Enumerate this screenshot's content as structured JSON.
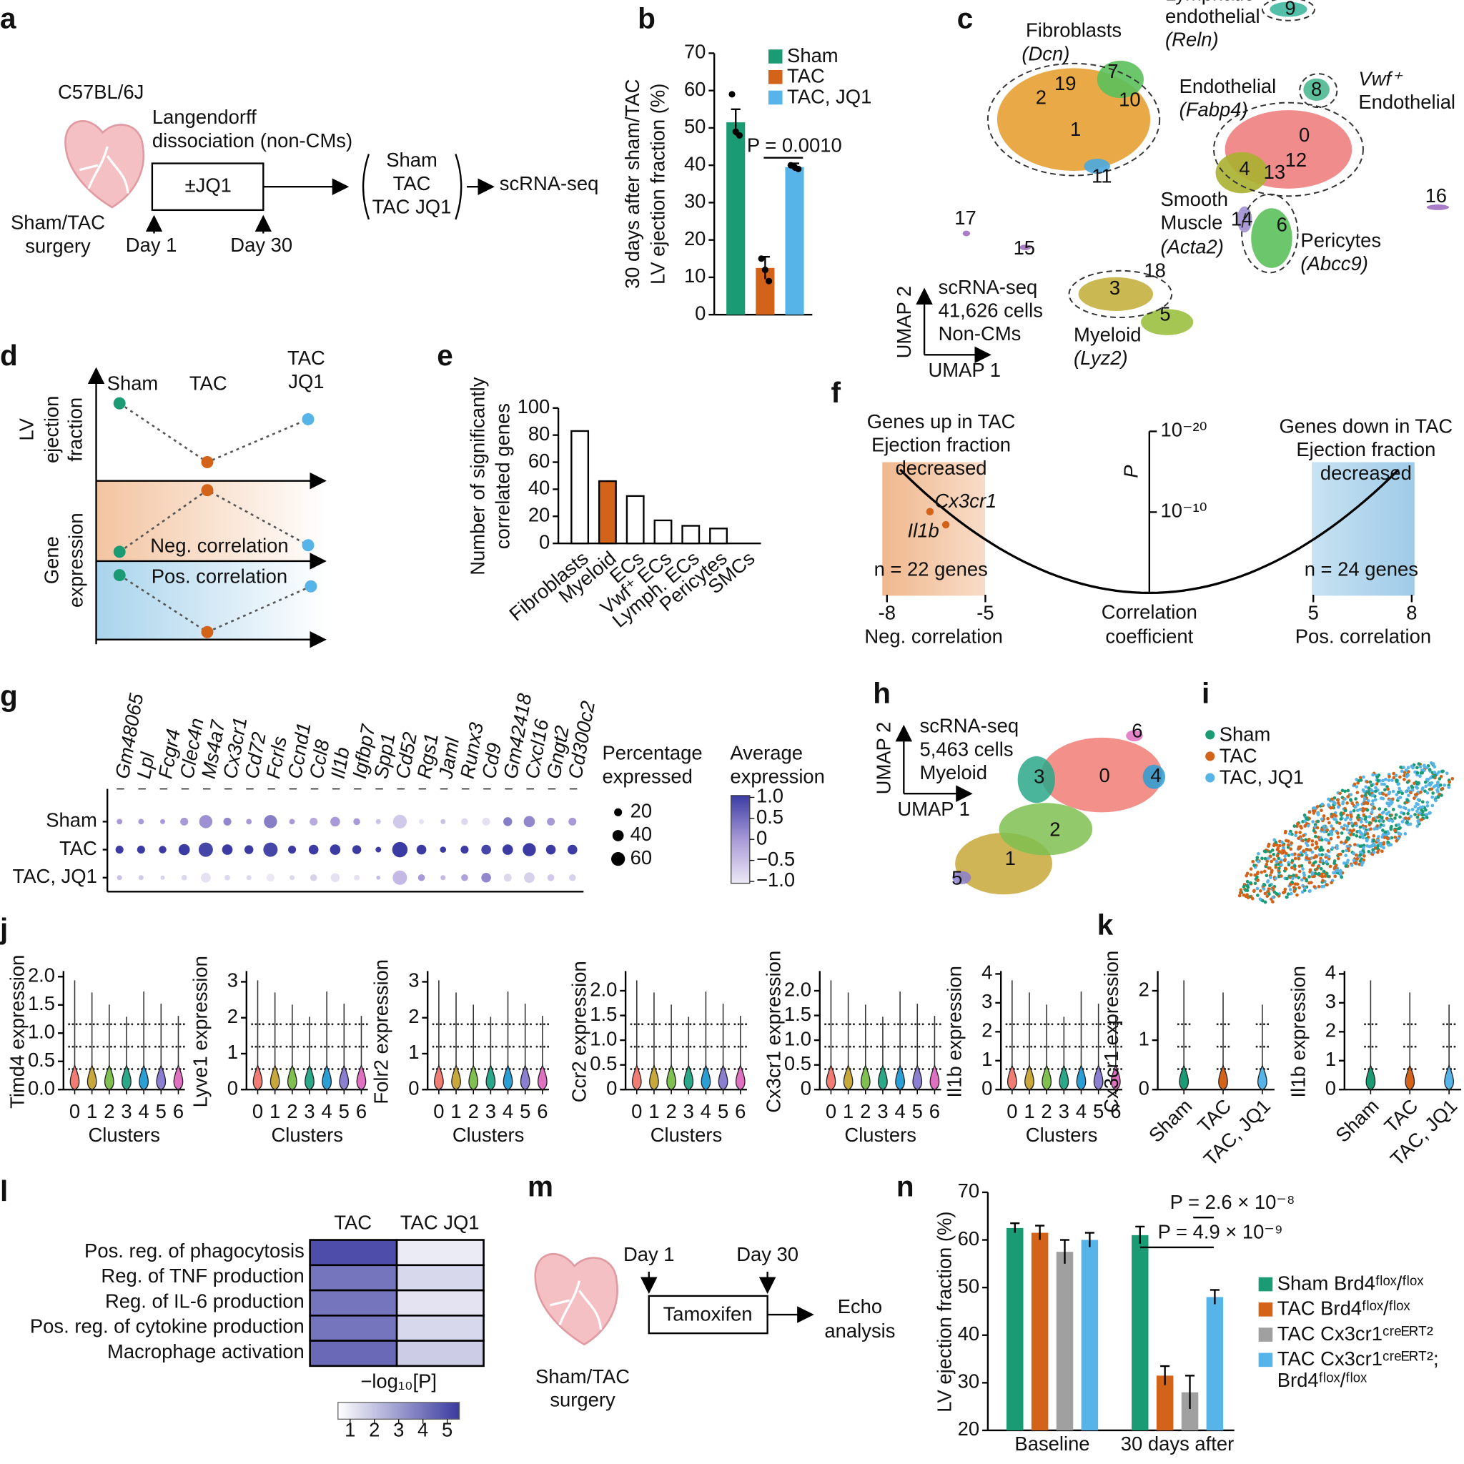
{
  "diagrams": [
    {
      "panel": "a",
      "strain": "C57BL/6J",
      "step": [
        "Langendorff",
        "dissociation (non-CMs)"
      ],
      "treatment": "±JQ1",
      "groups": [
        "Sham",
        "TAC",
        "TAC JQ1"
      ],
      "output": "scRNA-seq",
      "surgery": [
        "Sham/TAC",
        "surgery"
      ],
      "days": [
        "Day 1",
        "Day 30"
      ]
    },
    {
      "panel": "c",
      "clusters": [
        "0",
        "1",
        "2",
        "3",
        "4",
        "5",
        "6",
        "7",
        "8",
        "9",
        "10",
        "11",
        "12",
        "13",
        "14",
        "15",
        "16",
        "17",
        "18",
        "19"
      ],
      "cell_types": [
        [
          "Fibroblasts",
          "(Dcn)"
        ],
        [
          "Lymphatic",
          "endothelial",
          "(Reln)"
        ],
        [
          "Endothelial",
          "(Fabp4)"
        ],
        [
          "Vwf⁺",
          "Endothelial"
        ],
        [
          "Smooth",
          "Muscle",
          "(Acta2)"
        ],
        [
          "Pericytes",
          "(Abcc9)"
        ],
        [
          "Myeloid",
          "(Lyz2)"
        ]
      ],
      "info": [
        "scRNA-seq",
        "41,626 cells",
        "Non-CMs"
      ],
      "axes": [
        "UMAP 2",
        "UMAP 1"
      ]
    },
    {
      "panel": "d",
      "ylabel_top": [
        "LV",
        "ejection",
        "fraction"
      ],
      "ylabel_bottom": [
        "Gene",
        "expression"
      ],
      "conditions": [
        "Sham",
        "TAC"
      ],
      "condition3": [
        "TAC",
        "JQ1"
      ],
      "regions": [
        "Neg. correlation",
        "Pos. correlation"
      ]
    },
    {
      "panel": "h",
      "info": [
        "scRNA-seq",
        "5,463 cells",
        "Myeloid"
      ],
      "axes": [
        "UMAP 2",
        "UMAP 1"
      ],
      "clusters": [
        "0",
        "1",
        "2",
        "3",
        "4",
        "5",
        "6"
      ]
    },
    {
      "panel": "i",
      "legend": [
        {
          "name": "Sham",
          "color": "#1a9b73"
        },
        {
          "name": "TAC",
          "color": "#d4631a"
        },
        {
          "name": "TAC, JQ1",
          "color": "#56b4e9"
        }
      ]
    },
    {
      "panel": "m",
      "days": [
        "Day 1",
        "Day 30"
      ],
      "treatment": "Tamoxifen",
      "output": [
        "Echo",
        "analysis"
      ],
      "surgery": [
        "Sham/TAC",
        "surgery"
      ]
    }
  ],
  "chart_data": [
    {
      "panel": "b",
      "type": "bar",
      "ylabel": [
        "30 days after sham/TAC",
        "LV ejection fraction (%)"
      ],
      "ylim": [
        0,
        70
      ],
      "yticks": [
        0,
        10,
        20,
        30,
        40,
        50,
        60,
        70
      ],
      "series": [
        {
          "name": "Sham",
          "color": "#1a9b73",
          "values": [
            51.5
          ],
          "errors": [
            3.5
          ],
          "points": [
            59,
            49,
            48
          ]
        },
        {
          "name": "TAC",
          "color": "#d4631a",
          "values": [
            12.5
          ],
          "errors": [
            3
          ],
          "points": [
            15,
            12,
            9
          ]
        },
        {
          "name": "TAC, JQ1",
          "color": "#56b4e9",
          "values": [
            39.5
          ],
          "errors": [
            1
          ],
          "points": [
            40,
            39.5,
            39
          ]
        }
      ],
      "annotations": [
        "P = 0.0010"
      ]
    },
    {
      "panel": "e",
      "type": "bar",
      "ylabel": [
        "Number of significantly",
        "correlated genes"
      ],
      "categories": [
        "Fibroblasts",
        "Myeloid",
        "ECs",
        "Vwf⁺ ECs",
        "Lymph. ECs",
        "Pericytes",
        "SMCs"
      ],
      "values": [
        83,
        46,
        35,
        17,
        13,
        11,
        0
      ],
      "colors": [
        "#ffffff",
        "#d4631a",
        "#ffffff",
        "#ffffff",
        "#ffffff",
        "#ffffff",
        "#ffffff"
      ],
      "ylim": [
        0,
        100
      ],
      "yticks": [
        0,
        20,
        40,
        60,
        80,
        100
      ]
    },
    {
      "panel": "f",
      "type": "curve",
      "xlim": [
        -8,
        8
      ],
      "xticks": [
        -8,
        -5,
        5,
        8
      ],
      "ylim": [
        0,
        20
      ],
      "yticks": [
        {
          "value": 20,
          "label": "10⁻²⁰"
        },
        {
          "value": 10,
          "label": "10⁻¹⁰"
        }
      ],
      "ylabel": "P",
      "xlabel": [
        "Correlation",
        "coefficient"
      ],
      "xnotes": [
        "Neg. correlation",
        "Pos. correlation"
      ],
      "neg_label": [
        "Genes up in TAC",
        "Ejection fraction",
        "decreased"
      ],
      "pos_label": [
        "Genes down in TAC",
        "Ejection fraction",
        "decreased"
      ],
      "n_neg": "n = 22 genes",
      "n_pos": "n = 24 genes",
      "genes": [
        "Cx3cr1",
        "Il1b"
      ]
    },
    {
      "panel": "g",
      "type": "dot",
      "genes": [
        "Gm48065",
        "Lpl",
        "Fcgr4",
        "Clec4n",
        "Ms4a7",
        "Cx3cr1",
        "Cd72",
        "Fcrls",
        "Ccnd1",
        "Ccl8",
        "Il1b",
        "Igfbp7",
        "Spp1",
        "Cd52",
        "Rgs1",
        "Jaml",
        "Runx3",
        "Cd9",
        "Gm42418",
        "Cxcl16",
        "Gngt2",
        "Cd300c2"
      ],
      "series": [
        {
          "name": "Sham",
          "values": [
            10,
            10,
            8,
            20,
            55,
            20,
            10,
            55,
            10,
            20,
            30,
            15,
            8,
            60,
            8,
            8,
            15,
            20,
            25,
            40,
            20,
            20
          ],
          "avg": [
            0,
            0,
            0,
            0,
            0.1,
            0.2,
            0,
            0.3,
            0,
            -0.2,
            0,
            0,
            -0.5,
            -0.6,
            -0.9,
            -0.5,
            -0.8,
            -0.9,
            0.3,
            0.2,
            0,
            0
          ]
        },
        {
          "name": "TAC",
          "values": [
            20,
            20,
            18,
            40,
            65,
            35,
            25,
            65,
            20,
            30,
            35,
            25,
            10,
            75,
            30,
            12,
            20,
            30,
            35,
            55,
            30,
            30
          ],
          "avg": [
            1,
            1,
            1,
            1,
            0.9,
            1,
            1,
            0.9,
            1,
            1,
            1,
            1,
            1,
            1,
            1,
            1,
            1,
            0.9,
            1,
            1,
            1,
            1
          ]
        },
        {
          "name": "TAC, JQ1",
          "values": [
            8,
            8,
            6,
            10,
            30,
            10,
            8,
            20,
            8,
            15,
            25,
            10,
            5,
            65,
            15,
            8,
            15,
            30,
            20,
            35,
            15,
            15
          ],
          "avg": [
            -0.5,
            -0.6,
            -0.7,
            -0.8,
            -0.9,
            -0.8,
            -0.8,
            -1,
            -0.8,
            -0.7,
            -0.9,
            -0.9,
            -0.4,
            -0.4,
            0,
            -0.4,
            -0.1,
            0.2,
            -0.8,
            -0.7,
            -0.6,
            -0.7
          ]
        }
      ],
      "size_legend": {
        "title": [
          "Percentage",
          "expressed"
        ],
        "values": [
          20,
          40,
          60
        ]
      },
      "color_legend": {
        "title": [
          "Average",
          "expression"
        ],
        "ticks": [
          {
            "value": 1,
            "label": "1.0"
          },
          0.5,
          0,
          {
            "value": -0.5,
            "label": "−0.5"
          },
          {
            "value": -1,
            "label": "−1.0"
          }
        ]
      }
    },
    {
      "panel": "j",
      "type": "violin",
      "ylabel": "Timd4 expression",
      "xlabel": "Clusters",
      "categories": [
        "0",
        "1",
        "2",
        "3",
        "4",
        "5",
        "6"
      ],
      "ylim": [
        0,
        2.1
      ],
      "yticks": [
        {
          "value": 0,
          "label": "0.0"
        },
        0.5,
        {
          "value": 1,
          "label": "1.0"
        },
        1.5,
        {
          "value": 2,
          "label": "2.0"
        }
      ]
    },
    {
      "type": "violin",
      "ylabel": "Lyve1 expression",
      "xlabel": "Clusters",
      "categories": [
        "0",
        "1",
        "2",
        "3",
        "4",
        "5",
        "6"
      ],
      "ylim": [
        0,
        3.3
      ],
      "yticks": [
        0,
        1,
        2,
        3
      ]
    },
    {
      "type": "violin",
      "ylabel": "Folr2 expression",
      "xlabel": "Clusters",
      "categories": [
        "0",
        "1",
        "2",
        "3",
        "4",
        "5",
        "6"
      ],
      "ylim": [
        0,
        3.3
      ],
      "yticks": [
        0,
        1,
        2,
        3
      ]
    },
    {
      "type": "violin",
      "ylabel": "Ccr2 expression",
      "xlabel": "Clusters",
      "categories": [
        "0",
        "1",
        "2",
        "3",
        "4",
        "5",
        "6"
      ],
      "ylim": [
        0,
        2.4
      ],
      "yticks": [
        0,
        0.5,
        {
          "value": 1,
          "label": "1.0"
        },
        1.5,
        {
          "value": 2,
          "label": "2.0"
        }
      ]
    },
    {
      "type": "violin",
      "ylabel": "Cx3cr1 expression",
      "xlabel": "Clusters",
      "categories": [
        "0",
        "1",
        "2",
        "3",
        "4",
        "5",
        "6"
      ],
      "ylim": [
        0,
        2.4
      ],
      "yticks": [
        0,
        0.5,
        {
          "value": 1,
          "label": "1.0"
        },
        1.5,
        {
          "value": 2,
          "label": "2.0"
        }
      ]
    },
    {
      "type": "violin",
      "ylabel": "Il1b expression",
      "xlabel": "Clusters",
      "categories": [
        "0",
        "1",
        "2",
        "3",
        "4",
        "5",
        "6"
      ],
      "ylim": [
        0,
        4.1
      ],
      "yticks": [
        0,
        1,
        2,
        3,
        4
      ]
    },
    {
      "panel": "k",
      "type": "violin",
      "ylabel": "Cx3cr1 expression",
      "categories": [
        "Sham",
        "TAC",
        "TAC, JQ1"
      ],
      "ylim": [
        0,
        2.4
      ],
      "yticks": [
        0,
        1,
        2
      ]
    },
    {
      "type": "violin",
      "ylabel": "Il1b expression",
      "categories": [
        "Sham",
        "TAC",
        "TAC, JQ1"
      ],
      "ylim": [
        0,
        4.1
      ],
      "yticks": [
        0,
        1,
        2,
        3,
        4
      ]
    },
    {
      "panel": "l",
      "type": "heatmap",
      "columns": [
        "TAC",
        "TAC JQ1"
      ],
      "rows": [
        "Pos. reg. of phagocytosis",
        "Reg. of TNF production",
        "Reg. of IL-6 production",
        "Pos. reg. of cytokine production",
        "Macrophage activation"
      ],
      "values": [
        [
          5,
          1
        ],
        [
          4,
          1.5
        ],
        [
          4,
          1.2
        ],
        [
          4,
          1.5
        ],
        [
          4.3,
          1.8
        ]
      ],
      "colorbar": {
        "label": "−log₁₀[P]",
        "lim": [
          0.5,
          5.5
        ],
        "ticks": [
          1,
          2,
          3,
          4,
          5
        ]
      }
    },
    {
      "panel": "n",
      "type": "grouped_bar",
      "ylabel": "LV ejection fraction (%)",
      "categories": [
        "Baseline",
        "30 days after"
      ],
      "ylim": [
        20,
        70
      ],
      "yticks": [
        20,
        30,
        40,
        50,
        60,
        70
      ],
      "series": [
        {
          "name": "Sham Brd4ᶠˡᵒˣ/ᶠˡᵒˣ",
          "color": "#1a9b73",
          "values": [
            62.5,
            61
          ],
          "errors": [
            1,
            1.8
          ]
        },
        {
          "name": "TAC Brd4ᶠˡᵒˣ/ᶠˡᵒˣ",
          "color": "#d4631a",
          "values": [
            61.5,
            31.5
          ],
          "errors": [
            1.5,
            2
          ]
        },
        {
          "name": "TAC Cx3cr1ᶜʳᵉᴱᴿᵀ²",
          "color": "#a0a0a0",
          "values": [
            57.5,
            28
          ],
          "errors": [
            2.5,
            3.5
          ]
        },
        {
          "name": "TAC Cx3cr1ᶜʳᵉᴱᴿᵀ²; Brd4ᶠˡᵒˣ/ᶠˡᵒˣ",
          "color": "#56b4e9",
          "values": [
            60,
            48
          ],
          "errors": [
            1.5,
            1.5
          ]
        }
      ],
      "annotations": [
        "P = 2.6 × 10⁻⁸",
        "P = 4.9 × 10⁻⁹"
      ]
    }
  ]
}
